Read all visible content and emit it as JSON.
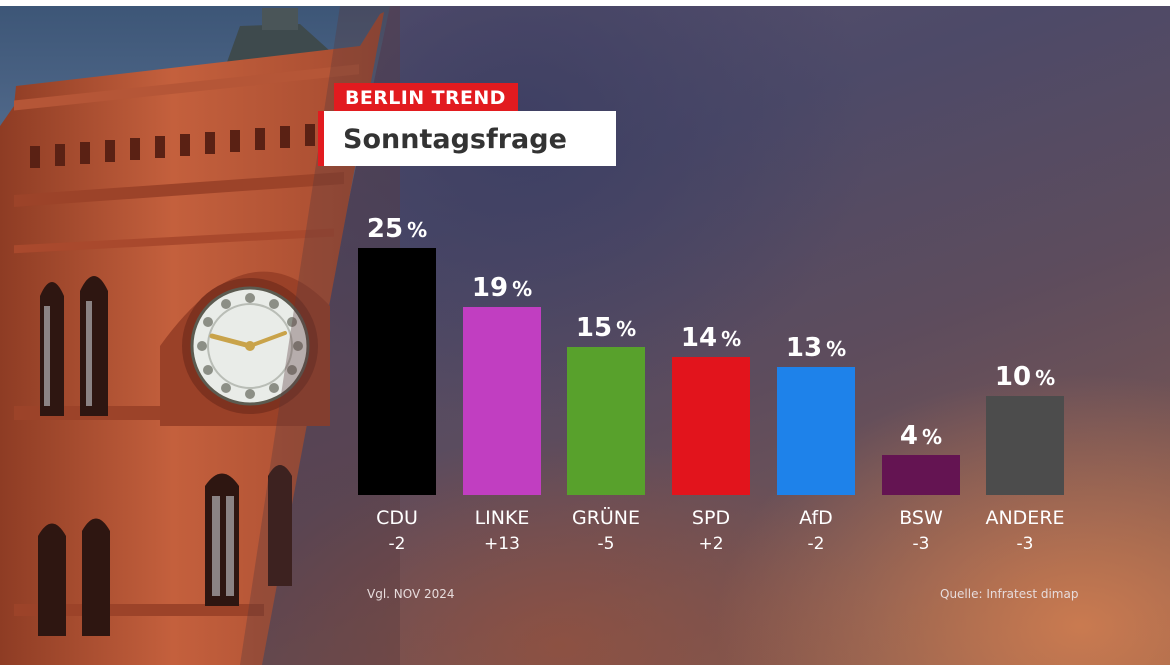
{
  "header": {
    "tag": "BERLIN TREND",
    "title": "Sonntagsfrage"
  },
  "footer": {
    "comparison": "Vgl. NOV 2024",
    "source": "Quelle: Infratest dimap"
  },
  "chart_data": {
    "type": "bar",
    "categories": [
      "CDU",
      "LINKE",
      "GRÜNE",
      "SPD",
      "AfD",
      "BSW",
      "ANDERE"
    ],
    "values": [
      25,
      19,
      15,
      14,
      13,
      4,
      10
    ],
    "changes": [
      "-2",
      "+13",
      "-5",
      "+2",
      "-2",
      "-3",
      "-3"
    ],
    "unit": "%",
    "colors": [
      "#000000",
      "#c13ec1",
      "#58a12c",
      "#e2141c",
      "#1e82ea",
      "#641452",
      "#4c4c4c"
    ],
    "ylim": [
      0,
      25
    ],
    "grid": false
  }
}
